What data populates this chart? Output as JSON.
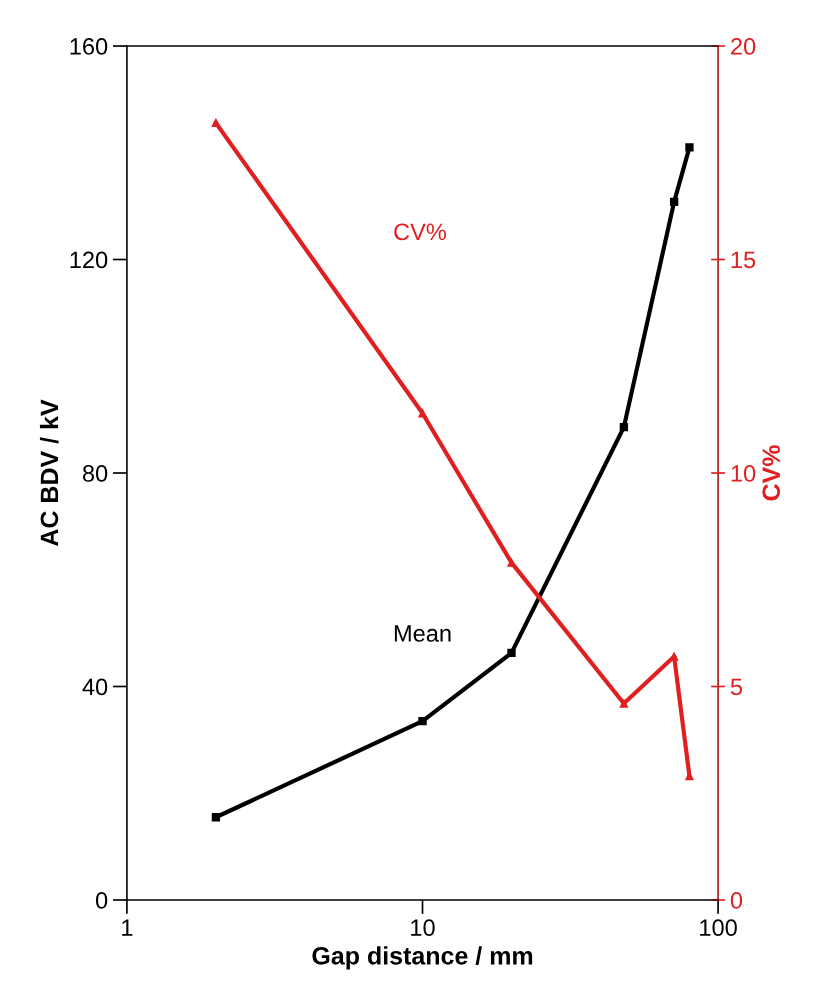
{
  "chart_data": {
    "type": "line",
    "xlabel": "Gap distance / mm",
    "ylabel": "AC BDV / kV",
    "y2label": "CV%",
    "log": "x",
    "x": [
      2,
      10,
      20,
      48,
      71,
      80
    ],
    "series": [
      {
        "name": "Mean",
        "color": "#000000",
        "values": [
          15.5,
          33.5,
          46.3,
          88.6,
          130.8,
          141
        ],
        "marker": "square"
      },
      {
        "name": "CV%",
        "color": "#e02020",
        "values": [
          18.2,
          11.4,
          7.9,
          4.6,
          5.7,
          2.9
        ],
        "axis": "y2",
        "marker": "triangle"
      }
    ],
    "xlim": [
      1,
      100
    ],
    "xticks": [
      1,
      10,
      100
    ],
    "ylim": [
      0,
      160
    ],
    "yticks": [
      0,
      40,
      80,
      120,
      160
    ],
    "y2lim": [
      0,
      20
    ],
    "y2ticks": [
      0,
      5,
      10,
      15,
      20
    ],
    "grid": false,
    "legend": false,
    "line_style": "solid"
  }
}
